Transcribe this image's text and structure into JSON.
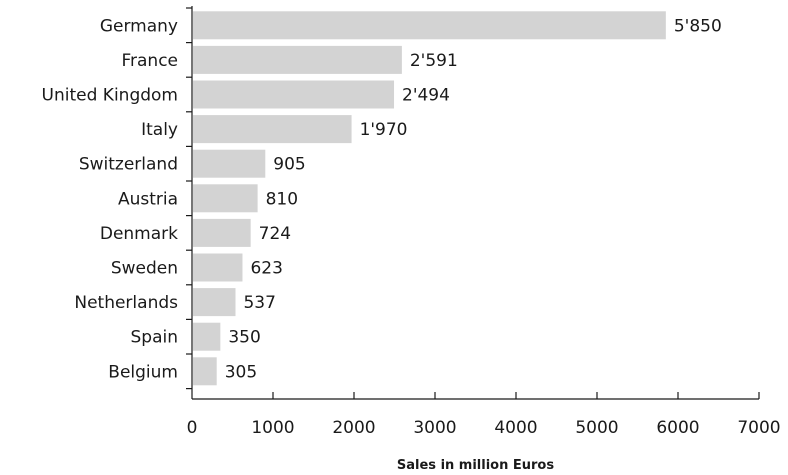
{
  "chart_data": {
    "type": "bar",
    "orientation": "horizontal",
    "categories": [
      "Germany",
      "France",
      "United Kingdom",
      "Italy",
      "Switzerland",
      "Austria",
      "Denmark",
      "Sweden",
      "Netherlands",
      "Spain",
      "Belgium"
    ],
    "values": [
      5850,
      2591,
      2494,
      1970,
      905,
      810,
      724,
      623,
      537,
      350,
      305
    ],
    "data_labels": [
      "5'850",
      "2'591",
      "2'494",
      "1'970",
      "905",
      "810",
      "724",
      "623",
      "537",
      "350",
      "305"
    ],
    "xlabel": "Sales in million Euros",
    "ylabel": "",
    "xlim": [
      0,
      7000
    ],
    "xticks": [
      0,
      1000,
      2000,
      3000,
      4000,
      5000,
      6000,
      7000
    ],
    "grid": false,
    "colors": {
      "bar": "#d3d3d3",
      "axis": "#1a1a1a",
      "text": "#1a1a1a"
    }
  }
}
